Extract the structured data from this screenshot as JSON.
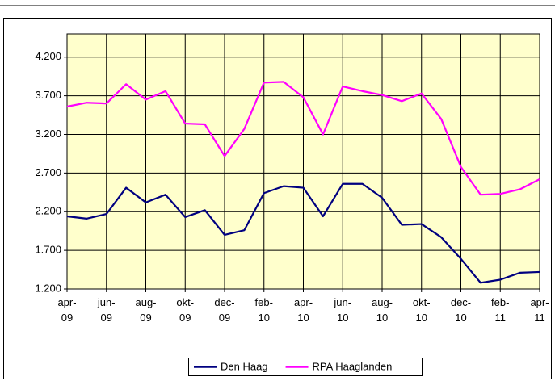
{
  "chart_data": {
    "type": "line",
    "categories": [
      "apr-09",
      null,
      "jun-09",
      null,
      "aug-09",
      null,
      "okt-09",
      null,
      "dec-09",
      null,
      "feb-10",
      null,
      "apr-10",
      null,
      "jun-10",
      null,
      "aug-10",
      null,
      "okt-10",
      null,
      "dec-10",
      null,
      "feb-11",
      null,
      "apr-11"
    ],
    "series": [
      {
        "name": "Den Haag",
        "color": "#000080",
        "values": [
          2140,
          2110,
          2170,
          2510,
          2320,
          2420,
          2130,
          2220,
          1900,
          1960,
          2440,
          2530,
          2510,
          2140,
          2560,
          2560,
          2380,
          2030,
          2040,
          1870,
          1590,
          1280,
          1320,
          1410,
          1420
        ]
      },
      {
        "name": "RPA Haaglanden",
        "color": "#ff00ff",
        "values": [
          3560,
          3610,
          3600,
          3850,
          3650,
          3760,
          3340,
          3330,
          2920,
          3270,
          3870,
          3880,
          3680,
          3200,
          3820,
          3760,
          3710,
          3630,
          3730,
          3400,
          2780,
          2420,
          2430,
          2490,
          2620
        ]
      }
    ],
    "ylim": [
      1200,
      4500
    ],
    "yticks": [
      {
        "value": 1200,
        "label": "1.200"
      },
      {
        "value": 1700,
        "label": "1.700"
      },
      {
        "value": 2200,
        "label": "2.200"
      },
      {
        "value": 2700,
        "label": "2.700"
      },
      {
        "value": 3200,
        "label": "3.200"
      },
      {
        "value": 3700,
        "label": "3.700"
      },
      {
        "value": 4200,
        "label": "4.200"
      }
    ],
    "grid": true,
    "legend": "bottom",
    "background": "#ffffcc"
  }
}
